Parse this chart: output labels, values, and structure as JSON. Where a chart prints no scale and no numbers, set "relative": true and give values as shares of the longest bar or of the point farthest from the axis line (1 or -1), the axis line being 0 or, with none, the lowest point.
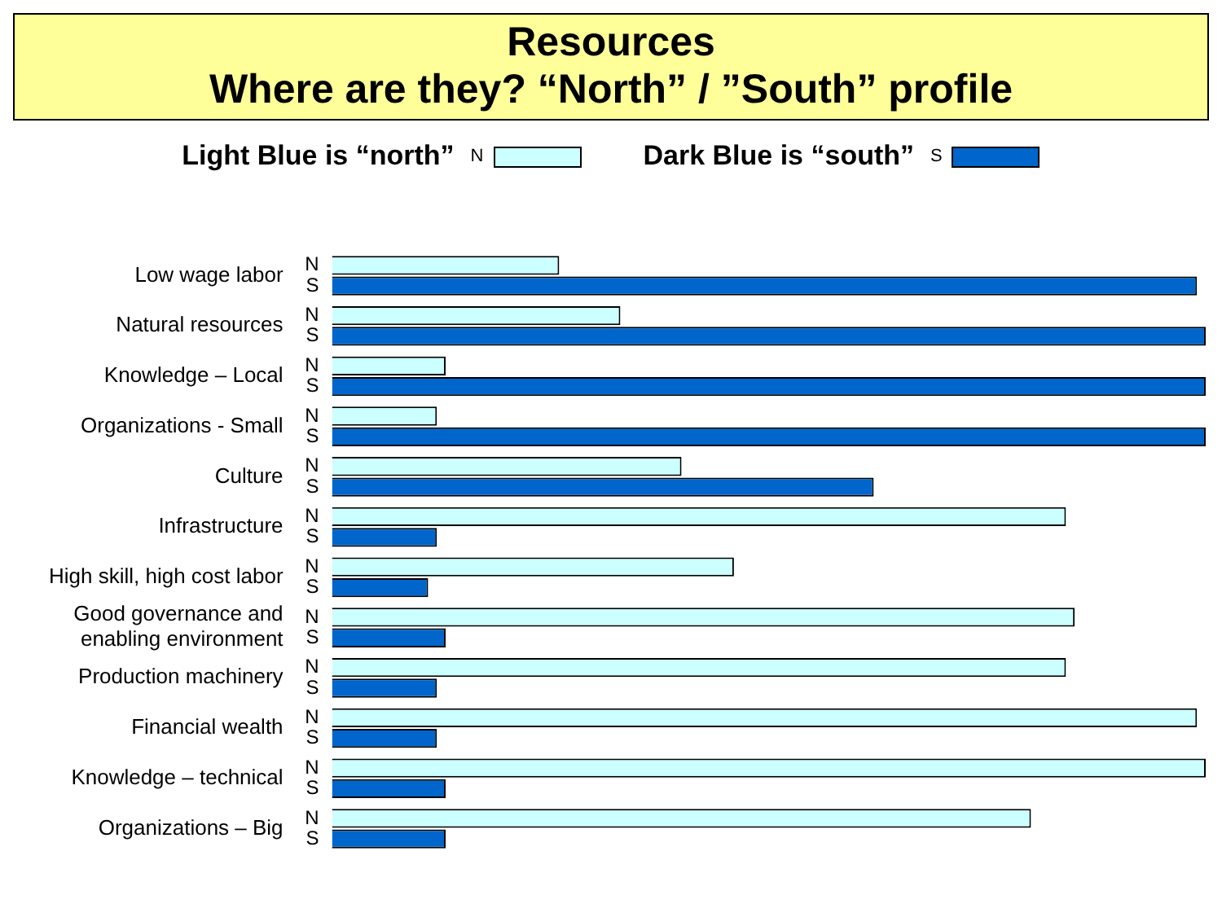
{
  "chart_data": {
    "type": "bar",
    "orientation": "horizontal",
    "relative": true,
    "title": "Resources",
    "subtitle": "Where are they?  “North” / ”South” profile",
    "legend": "top",
    "categories": [
      "Low wage labor",
      "Natural resources",
      "Knowledge – Local",
      "Organizations - Small",
      "Culture",
      "Infrastructure",
      "High skill, high cost labor",
      "Good governance and enabling environment",
      "Production machinery",
      "Financial wealth",
      "Knowledge – technical",
      "Organizations – Big"
    ],
    "series": [
      {
        "name": "Light Blue is “north”",
        "color": "#ccffff",
        "values": [
          0.26,
          0.33,
          0.13,
          0.12,
          0.4,
          0.84,
          0.46,
          0.85,
          0.84,
          0.99,
          1.0,
          0.8
        ]
      },
      {
        "name": "Dark Blue is “south”",
        "color": "#0066cc",
        "values": [
          0.99,
          1.0,
          1.0,
          1.0,
          0.62,
          0.12,
          0.11,
          0.13,
          0.12,
          0.12,
          0.13,
          0.13
        ]
      }
    ],
    "annotations": [
      "N",
      "S"
    ]
  }
}
